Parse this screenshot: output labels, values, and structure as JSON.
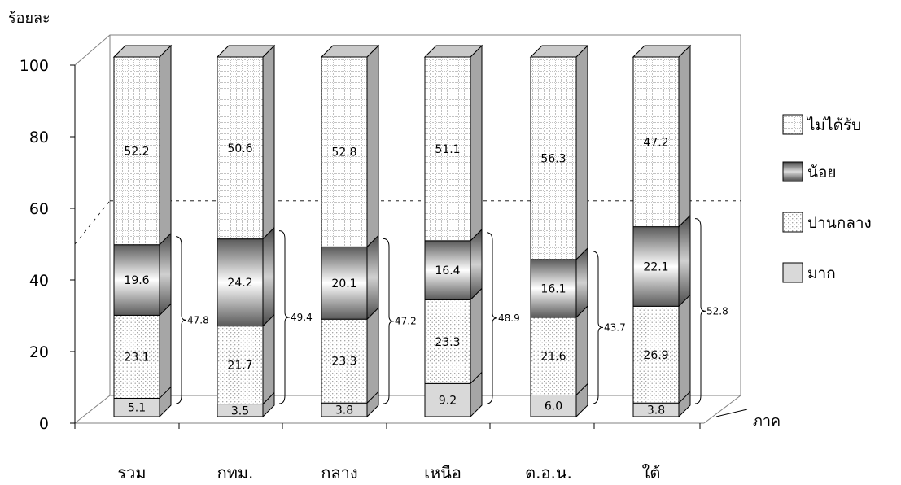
{
  "chart_data": {
    "type": "bar",
    "stacked": true,
    "ylabel": "ร้อยละ",
    "xlabel": "ภาค",
    "ylim": [
      0,
      100
    ],
    "yticks": [
      0,
      20,
      40,
      60,
      80,
      100
    ],
    "categories": [
      "รวม",
      "กทม.",
      "กลาง",
      "เหนือ",
      "ต.อ.น.",
      "ใต้"
    ],
    "series": [
      {
        "name": "มาก",
        "values": [
          5.1,
          3.5,
          3.8,
          9.2,
          6.0,
          3.8
        ],
        "labels": [
          "5.1",
          "3.5",
          "3.8",
          "9.2",
          "6.0",
          "3.8"
        ],
        "pattern": "solid-gray"
      },
      {
        "name": "ปานกลาง",
        "values": [
          23.1,
          21.7,
          23.3,
          23.3,
          21.6,
          26.9
        ],
        "labels": [
          "23.1",
          "21.7",
          "23.3",
          "23.3",
          "21.6",
          "26.9"
        ],
        "pattern": "dots"
      },
      {
        "name": "น้อย",
        "values": [
          19.6,
          24.2,
          20.1,
          16.4,
          16.1,
          22.1
        ],
        "labels": [
          "19.6",
          "24.2",
          "20.1",
          "16.4",
          "16.1",
          "22.1"
        ],
        "pattern": "gradient"
      },
      {
        "name": "ไม่ได้รับ",
        "values": [
          52.2,
          50.6,
          52.8,
          51.1,
          56.3,
          47.2
        ],
        "labels": [
          "52.2",
          "50.6",
          "52.8",
          "51.1",
          "56.3",
          "47.2"
        ],
        "pattern": "grid"
      }
    ],
    "bracket_totals": [
      "47.8",
      "49.4",
      "47.2",
      "48.9",
      "43.7",
      "52.8"
    ],
    "legend_order": [
      "ไม่ได้รับ",
      "น้อย",
      "ปานกลาง",
      "มาก"
    ],
    "legend_position": "right",
    "reference_line": 60,
    "colors": {
      "bar_side": "#a6a6a6",
      "bar_top": "#c9c9c9",
      "solid_front": "#d9d9d9",
      "dot": "#9a9a9a",
      "grid": "#b0b0b0"
    }
  }
}
